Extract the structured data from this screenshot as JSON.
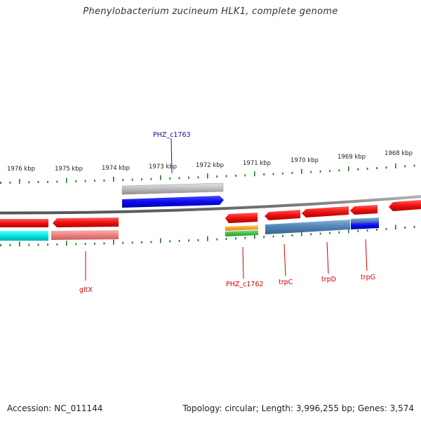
{
  "title": "Phenylobacterium zucineum HLK1, complete genome",
  "footer": {
    "accession": "Accession: NC_011144",
    "stats": "Topology: circular; Length: 3,996,255 bp; Genes: 3,574"
  },
  "ruler_ticks": [
    "1976 kbp",
    "1975 kbp",
    "1974 kbp",
    "1973 kbp",
    "1972 kbp",
    "1971 kbp",
    "1970 kbp",
    "1969 kbp",
    "1968 kbp"
  ],
  "gene_labels": {
    "phz_c1763": "PHZ_c1763",
    "gltx": "gltX",
    "phz_c1762": "PHZ_c1762",
    "trpc": "trpC",
    "trpd": "trpD",
    "trpg": "trpG"
  },
  "colors": {
    "forward_cds": "#ee1c1c",
    "reverse_cds": "#1010ee",
    "backbone": "#888888",
    "ticks": "#1a7a1a",
    "label_red": "#cc0000",
    "label_blue": "#1111aa",
    "cyan_feature": "#00e5e5",
    "pink_feature": "#f08080",
    "steel_feature": "#4f82b4",
    "gray_feature": "#bbbbbb",
    "orange_feature": "#f5a623",
    "green_feature": "#33bb33"
  }
}
